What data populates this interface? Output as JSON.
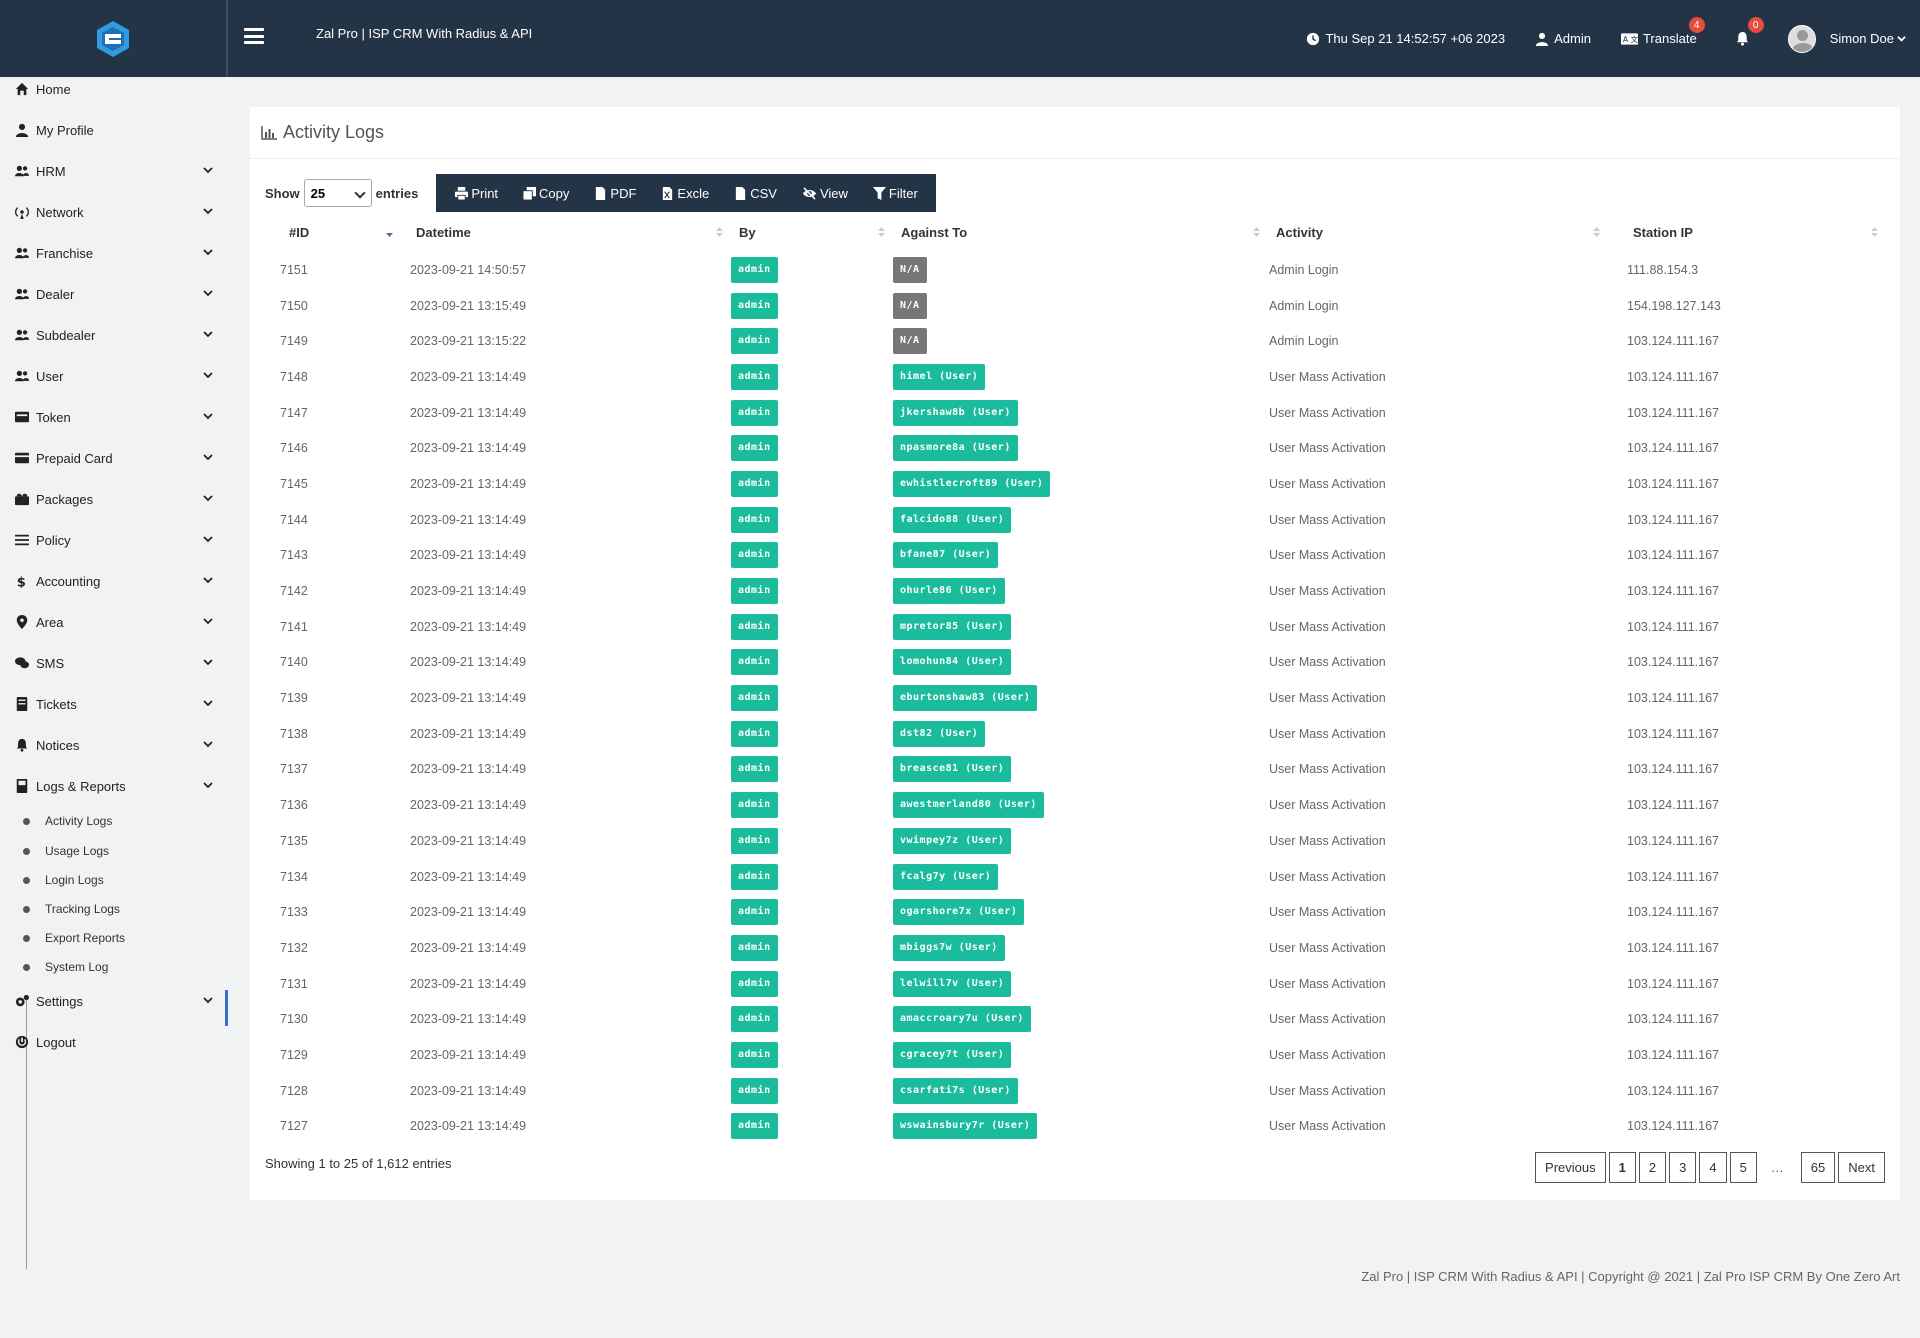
{
  "header": {
    "title": "Zal Pro | ISP CRM With Radius & API",
    "datetime": "Thu Sep 21 14:52:57 +06 2023",
    "admin_label": "Admin",
    "translate_label": "Translate",
    "translate_badge": "4",
    "notification_badge": "0",
    "user_name": "Simon Doe"
  },
  "sidebar": {
    "items": [
      {
        "label": "Home"
      },
      {
        "label": "My Profile"
      },
      {
        "label": "HRM"
      },
      {
        "label": "Network"
      },
      {
        "label": "Franchise"
      },
      {
        "label": "Dealer"
      },
      {
        "label": "Subdealer"
      },
      {
        "label": "User"
      },
      {
        "label": "Token"
      },
      {
        "label": "Prepaid Card"
      },
      {
        "label": "Packages"
      },
      {
        "label": "Policy"
      },
      {
        "label": "Accounting"
      },
      {
        "label": "Area"
      },
      {
        "label": "SMS"
      },
      {
        "label": "Tickets"
      },
      {
        "label": "Notices"
      },
      {
        "label": "Logs & Reports"
      },
      {
        "label": "Settings"
      },
      {
        "label": "Logout"
      }
    ],
    "subitems": [
      {
        "label": "Activity Logs"
      },
      {
        "label": "Usage Logs"
      },
      {
        "label": "Login Logs"
      },
      {
        "label": "Tracking Logs"
      },
      {
        "label": "Export Reports"
      },
      {
        "label": "System Log"
      }
    ]
  },
  "page": {
    "title": "Activity Logs",
    "show_label": "Show",
    "show_value": "25",
    "entries_label": "entries",
    "buttons": {
      "print": "Print",
      "copy": "Copy",
      "pdf": "PDF",
      "excel": "Excle",
      "csv": "CSV",
      "view": "View",
      "filter": "Filter"
    },
    "columns": {
      "id": "#ID",
      "datetime": "Datetime",
      "by": "By",
      "against": "Against To",
      "activity": "Activity",
      "ip": "Station IP"
    },
    "rows": [
      {
        "id": "7151",
        "datetime": "2023-09-21 14:50:57",
        "by": "admin",
        "against": "N/A",
        "against_type": "gray",
        "activity": "Admin Login",
        "ip": "111.88.154.3"
      },
      {
        "id": "7150",
        "datetime": "2023-09-21 13:15:49",
        "by": "admin",
        "against": "N/A",
        "against_type": "gray",
        "activity": "Admin Login",
        "ip": "154.198.127.143"
      },
      {
        "id": "7149",
        "datetime": "2023-09-21 13:15:22",
        "by": "admin",
        "against": "N/A",
        "against_type": "gray",
        "activity": "Admin Login",
        "ip": "103.124.111.167"
      },
      {
        "id": "7148",
        "datetime": "2023-09-21 13:14:49",
        "by": "admin",
        "against": "himel (User)",
        "against_type": "green",
        "activity": "User Mass Activation",
        "ip": "103.124.111.167"
      },
      {
        "id": "7147",
        "datetime": "2023-09-21 13:14:49",
        "by": "admin",
        "against": "jkershaw8b (User)",
        "against_type": "green",
        "activity": "User Mass Activation",
        "ip": "103.124.111.167"
      },
      {
        "id": "7146",
        "datetime": "2023-09-21 13:14:49",
        "by": "admin",
        "against": "npasmore8a (User)",
        "against_type": "green",
        "activity": "User Mass Activation",
        "ip": "103.124.111.167"
      },
      {
        "id": "7145",
        "datetime": "2023-09-21 13:14:49",
        "by": "admin",
        "against": "ewhistlecroft89 (User)",
        "against_type": "green",
        "activity": "User Mass Activation",
        "ip": "103.124.111.167"
      },
      {
        "id": "7144",
        "datetime": "2023-09-21 13:14:49",
        "by": "admin",
        "against": "falcido88 (User)",
        "against_type": "green",
        "activity": "User Mass Activation",
        "ip": "103.124.111.167"
      },
      {
        "id": "7143",
        "datetime": "2023-09-21 13:14:49",
        "by": "admin",
        "against": "bfane87 (User)",
        "against_type": "green",
        "activity": "User Mass Activation",
        "ip": "103.124.111.167"
      },
      {
        "id": "7142",
        "datetime": "2023-09-21 13:14:49",
        "by": "admin",
        "against": "ohurle86 (User)",
        "against_type": "green",
        "activity": "User Mass Activation",
        "ip": "103.124.111.167"
      },
      {
        "id": "7141",
        "datetime": "2023-09-21 13:14:49",
        "by": "admin",
        "against": "mpretor85 (User)",
        "against_type": "green",
        "activity": "User Mass Activation",
        "ip": "103.124.111.167"
      },
      {
        "id": "7140",
        "datetime": "2023-09-21 13:14:49",
        "by": "admin",
        "against": "lomohun84 (User)",
        "against_type": "green",
        "activity": "User Mass Activation",
        "ip": "103.124.111.167"
      },
      {
        "id": "7139",
        "datetime": "2023-09-21 13:14:49",
        "by": "admin",
        "against": "eburtonshaw83 (User)",
        "against_type": "green",
        "activity": "User Mass Activation",
        "ip": "103.124.111.167"
      },
      {
        "id": "7138",
        "datetime": "2023-09-21 13:14:49",
        "by": "admin",
        "against": "dst82 (User)",
        "against_type": "green",
        "activity": "User Mass Activation",
        "ip": "103.124.111.167"
      },
      {
        "id": "7137",
        "datetime": "2023-09-21 13:14:49",
        "by": "admin",
        "against": "breasce81 (User)",
        "against_type": "green",
        "activity": "User Mass Activation",
        "ip": "103.124.111.167"
      },
      {
        "id": "7136",
        "datetime": "2023-09-21 13:14:49",
        "by": "admin",
        "against": "awestmerland80 (User)",
        "against_type": "green",
        "activity": "User Mass Activation",
        "ip": "103.124.111.167"
      },
      {
        "id": "7135",
        "datetime": "2023-09-21 13:14:49",
        "by": "admin",
        "against": "vwimpey7z (User)",
        "against_type": "green",
        "activity": "User Mass Activation",
        "ip": "103.124.111.167"
      },
      {
        "id": "7134",
        "datetime": "2023-09-21 13:14:49",
        "by": "admin",
        "against": "fcalg7y (User)",
        "against_type": "green",
        "activity": "User Mass Activation",
        "ip": "103.124.111.167"
      },
      {
        "id": "7133",
        "datetime": "2023-09-21 13:14:49",
        "by": "admin",
        "against": "ogarshore7x (User)",
        "against_type": "green",
        "activity": "User Mass Activation",
        "ip": "103.124.111.167"
      },
      {
        "id": "7132",
        "datetime": "2023-09-21 13:14:49",
        "by": "admin",
        "against": "mbiggs7w (User)",
        "against_type": "green",
        "activity": "User Mass Activation",
        "ip": "103.124.111.167"
      },
      {
        "id": "7131",
        "datetime": "2023-09-21 13:14:49",
        "by": "admin",
        "against": "lelwill7v (User)",
        "against_type": "green",
        "activity": "User Mass Activation",
        "ip": "103.124.111.167"
      },
      {
        "id": "7130",
        "datetime": "2023-09-21 13:14:49",
        "by": "admin",
        "against": "amaccroary7u (User)",
        "against_type": "green",
        "activity": "User Mass Activation",
        "ip": "103.124.111.167"
      },
      {
        "id": "7129",
        "datetime": "2023-09-21 13:14:49",
        "by": "admin",
        "against": "cgracey7t (User)",
        "against_type": "green",
        "activity": "User Mass Activation",
        "ip": "103.124.111.167"
      },
      {
        "id": "7128",
        "datetime": "2023-09-21 13:14:49",
        "by": "admin",
        "against": "csarfati7s (User)",
        "against_type": "green",
        "activity": "User Mass Activation",
        "ip": "103.124.111.167"
      },
      {
        "id": "7127",
        "datetime": "2023-09-21 13:14:49",
        "by": "admin",
        "against": "wswainsbury7r (User)",
        "against_type": "green",
        "activity": "User Mass Activation",
        "ip": "103.124.111.167"
      }
    ],
    "info": "Showing 1 to 25 of 1,612 entries",
    "pagination": {
      "previous": "Previous",
      "pages": [
        "1",
        "2",
        "3",
        "4",
        "5"
      ],
      "ellipsis": "…",
      "last": "65",
      "next": "Next",
      "current": "1"
    }
  },
  "footer": {
    "text": "Zal Pro | ISP CRM With Radius & API | Copyright @ 2021 | Zal Pro ISP CRM By One Zero Art"
  },
  "colors": {
    "topbar": "#243447",
    "tag_green": "#1abc9c",
    "tag_gray": "#777777",
    "active_accent": "#3b6ed1"
  },
  "icons": {
    "sidebar": [
      "home-icon",
      "user-icon",
      "users-icon",
      "network-icon",
      "users-icon",
      "users-icon",
      "users-icon",
      "users-icon",
      "token-icon",
      "card-icon",
      "packages-icon",
      "policy-icon",
      "dollar-icon",
      "map-marker-icon",
      "comments-icon",
      "ticket-icon",
      "bell-icon",
      "book-icon",
      "cogs-icon",
      "power-icon"
    ]
  }
}
